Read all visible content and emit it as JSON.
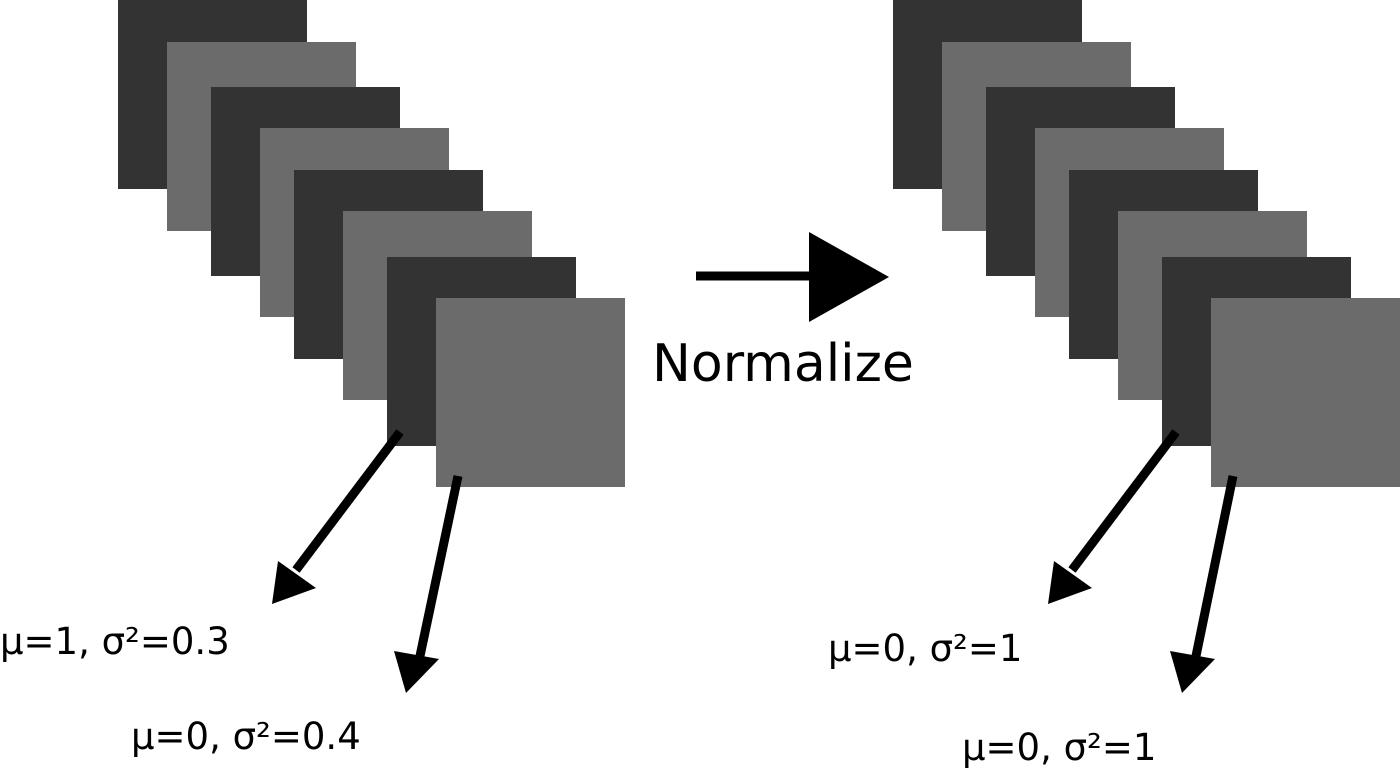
{
  "diagram": {
    "operation_label": "Normalize",
    "colors": {
      "dark": "#333333",
      "light": "#6b6b6b",
      "arrow": "#000000"
    },
    "before": {
      "stack_size": 8,
      "annotations": [
        {
          "text": "μ=1, σ²=0.3"
        },
        {
          "text": "μ=0, σ²=0.4"
        }
      ]
    },
    "after": {
      "stack_size": 8,
      "annotations": [
        {
          "text": "μ=0, σ²=1"
        },
        {
          "text": "μ=0, σ²=1"
        }
      ]
    }
  }
}
